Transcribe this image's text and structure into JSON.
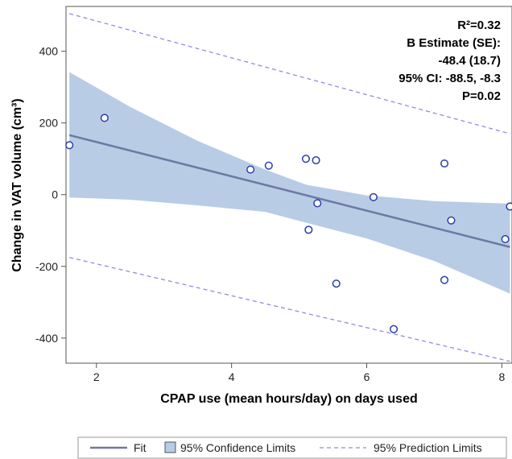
{
  "chart_data": {
    "type": "scatter",
    "xlabel": "CPAP use (mean hours/day) on days used",
    "ylabel": "Change in VAT volume (cm³)",
    "xlim": [
      1.55,
      8.15
    ],
    "ylim": [
      -470,
      525
    ],
    "x_ticks": [
      2,
      4,
      6,
      8
    ],
    "y_ticks": [
      -400,
      -200,
      0,
      200,
      400
    ],
    "x_tick_labels": [
      "2",
      "4",
      "6",
      "8"
    ],
    "y_tick_labels": [
      "-400",
      "-200",
      "0",
      "200",
      "400"
    ],
    "grid": false,
    "points": [
      {
        "x": 1.6,
        "y": 138
      },
      {
        "x": 2.12,
        "y": 214
      },
      {
        "x": 4.28,
        "y": 70
      },
      {
        "x": 4.55,
        "y": 81
      },
      {
        "x": 5.1,
        "y": 100
      },
      {
        "x": 5.25,
        "y": 96
      },
      {
        "x": 5.27,
        "y": -24
      },
      {
        "x": 5.14,
        "y": -98
      },
      {
        "x": 5.55,
        "y": -248
      },
      {
        "x": 6.1,
        "y": -7
      },
      {
        "x": 6.4,
        "y": -375
      },
      {
        "x": 7.15,
        "y": 87
      },
      {
        "x": 7.15,
        "y": -238
      },
      {
        "x": 7.25,
        "y": -72
      },
      {
        "x": 8.05,
        "y": -124
      },
      {
        "x": 8.12,
        "y": -33
      }
    ],
    "fit": {
      "x": [
        1.6,
        8.12
      ],
      "y": [
        166,
        -146
      ]
    },
    "confidence_band": {
      "x": [
        1.6,
        2.5,
        3.5,
        4.5,
        5.1,
        6.0,
        7.0,
        8.12
      ],
      "upper": [
        342,
        245,
        150,
        70,
        28,
        -2,
        -18,
        -25
      ],
      "lower": [
        -8,
        -14,
        -30,
        -48,
        -78,
        -122,
        -185,
        -276
      ]
    },
    "prediction_band": {
      "x": [
        1.6,
        8.12
      ],
      "upper": [
        505,
        170
      ],
      "lower": [
        -175,
        -465
      ]
    },
    "annotation": [
      "R²=0.32",
      "B Estimate (SE):",
      "-48.4 (18.7)",
      "95% CI: -88.5, -8.3",
      "P=0.02"
    ],
    "legend": {
      "position": "bottom",
      "items": [
        {
          "label": "Fit",
          "kind": "line"
        },
        {
          "label": "95% Confidence Limits",
          "kind": "band"
        },
        {
          "label": "95% Prediction Limits",
          "kind": "dashed"
        }
      ]
    },
    "colors": {
      "point": "#2b3fa8",
      "fit": "#6b7aa3",
      "band_fill": "#b8cce6",
      "prediction": "#8c8ce6",
      "axis": "#555555"
    }
  }
}
